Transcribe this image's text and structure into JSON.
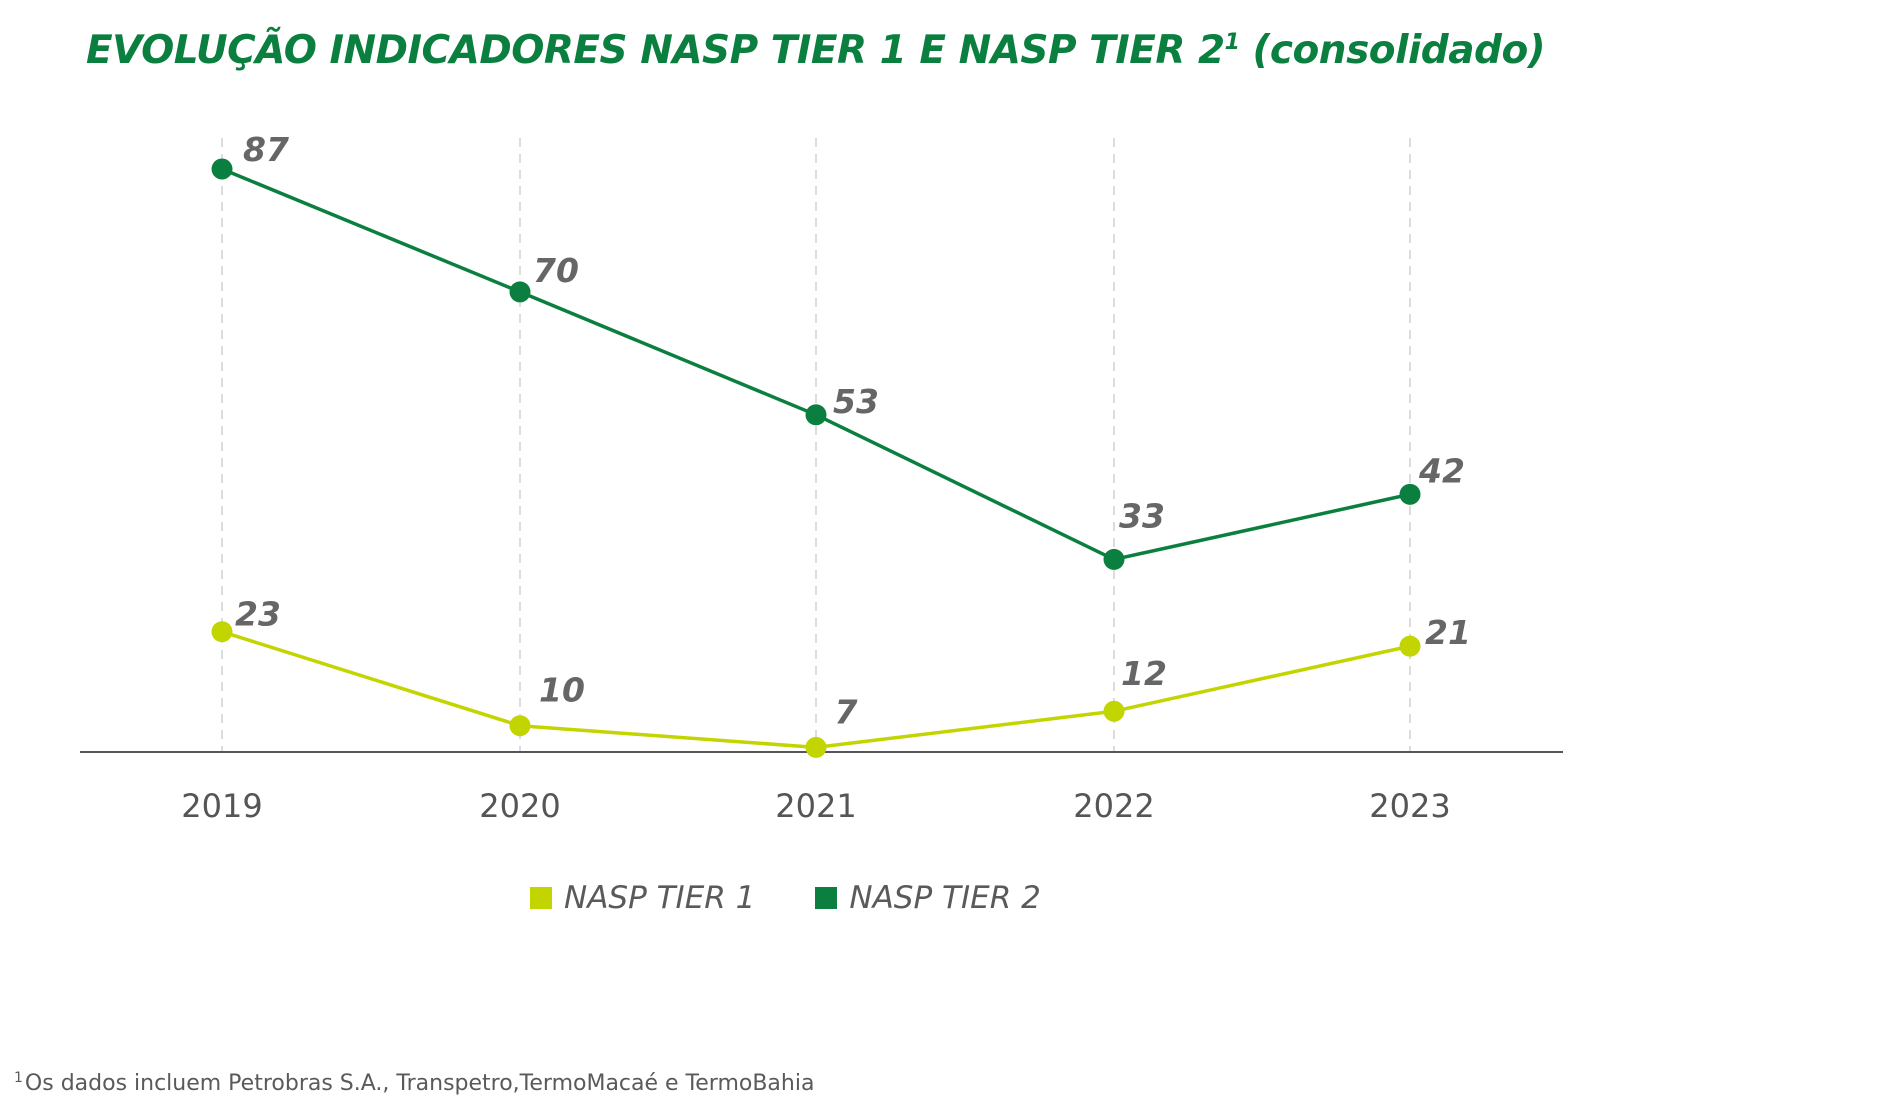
{
  "title": {
    "text": "EVOLUÇÃO INDICADORES NASP TIER 1 E NASP TIER 2",
    "sup": "1",
    "suffix": " (consolidado)"
  },
  "chart_data": {
    "type": "line",
    "x": [
      "2019",
      "2020",
      "2021",
      "2022",
      "2023"
    ],
    "ylim": [
      0,
      100
    ],
    "grid": "vertical-dashed",
    "legend_position": "bottom-center",
    "series": [
      {
        "name": "NASP TIER 1",
        "color": "#c3d500",
        "values": [
          23,
          10,
          7,
          12,
          21
        ]
      },
      {
        "name": "NASP TIER 2",
        "color": "#0a7f3f",
        "values": [
          87,
          70,
          53,
          33,
          42
        ]
      }
    ]
  },
  "colors": {
    "title": "#0a7f3f",
    "label": "#666666",
    "axis": "#555555",
    "gridline": "#d0d0d0"
  },
  "footnote": {
    "sup": "1",
    "text": "Os dados incluem Petrobras S.A., Transpetro,TermoMacaé e TermoBahia"
  }
}
